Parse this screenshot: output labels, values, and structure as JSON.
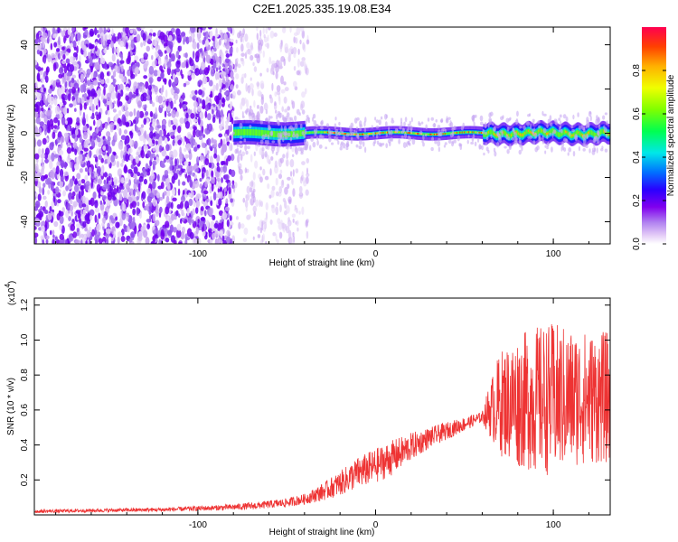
{
  "title": "C2E1.2025.335.19.08.E34",
  "chart_data": [
    {
      "type": "heatmap",
      "xlabel": "Height of straight line (km)",
      "ylabel": "Frequency (Hz)",
      "xlim": [
        -192,
        132
      ],
      "ylim": [
        -50,
        48
      ],
      "xticks": [
        -100,
        0,
        100
      ],
      "yticks": [
        -40,
        -20,
        0,
        20,
        40
      ],
      "colorbar": {
        "label": "Normalized spectral amplitude",
        "range": [
          0,
          1
        ],
        "ticks": [
          "0.0",
          "0.2",
          "0.4",
          "0.6",
          "0.8"
        ],
        "colormap": [
          "#ffffff",
          "#e6d0f7",
          "#a070f0",
          "#7a00f0",
          "#2000ff",
          "#0090ff",
          "#00e5e5",
          "#00ff40",
          "#b0ff00",
          "#ffe000",
          "#ff8000",
          "#ff0000"
        ]
      },
      "description_of_field": {
        "noise_region_x": [
          -192,
          -80
        ],
        "sparse_noise_region_x": [
          -80,
          -38
        ],
        "signal_onset_x": -80,
        "signal_center_freq_hz": 0,
        "signal_half_width_hz": [
          4,
          1
        ]
      }
    },
    {
      "type": "line",
      "xlabel": "Height of straight line (km)",
      "ylabel": "SNR (10 * v/v)",
      "yscale_label": "(x10",
      "yscale_exp": "4",
      "yscale_close": ")",
      "xlim": [
        -192,
        132
      ],
      "ylim": [
        0,
        1.24
      ],
      "xticks": [
        -100,
        0,
        100
      ],
      "yticks": [
        "0.2",
        "0.4",
        "0.6",
        "0.8",
        "1.0",
        "1.2"
      ],
      "color": "#ee3333",
      "series": [
        {
          "x": [
            -192,
            -160,
            -120,
            -90,
            -70,
            -50,
            -40,
            -30,
            -20,
            -10,
            0,
            10,
            20,
            30,
            40,
            50,
            60,
            64,
            70,
            80,
            90,
            100,
            110,
            120,
            132
          ],
          "y": [
            0.02,
            0.025,
            0.03,
            0.04,
            0.05,
            0.07,
            0.09,
            0.13,
            0.18,
            0.24,
            0.28,
            0.33,
            0.39,
            0.44,
            0.48,
            0.52,
            0.56,
            0.6,
            0.64,
            0.65,
            0.66,
            0.66,
            0.67,
            0.67,
            0.67
          ],
          "noise_amplitude": [
            0.01,
            0.01,
            0.012,
            0.015,
            0.02,
            0.025,
            0.03,
            0.05,
            0.07,
            0.09,
            0.1,
            0.1,
            0.08,
            0.06,
            0.05,
            0.04,
            0.03,
            0.15,
            0.3,
            0.38,
            0.42,
            0.44,
            0.4,
            0.38,
            0.38
          ]
        }
      ]
    }
  ]
}
